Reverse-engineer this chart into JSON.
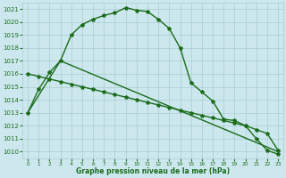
{
  "line1": {
    "x": [
      0,
      1,
      2,
      3,
      4,
      5,
      6,
      7,
      8,
      9,
      10,
      11,
      12,
      13,
      14,
      15,
      16,
      17,
      18,
      19,
      20,
      21,
      22,
      23
    ],
    "y": [
      1013.0,
      1014.8,
      1016.1,
      1017.0,
      1019.0,
      1019.8,
      1020.2,
      1020.5,
      1020.7,
      1021.1,
      1020.9,
      1020.8,
      1020.2,
      1019.5,
      1018.0,
      1015.3,
      1014.6,
      1013.9,
      1012.5,
      1012.4,
      1012.0,
      1011.0,
      1010.1,
      1009.8
    ]
  },
  "line2": {
    "x": [
      0,
      1,
      2,
      3,
      4,
      5,
      6,
      7,
      8,
      9,
      10,
      11,
      12,
      13,
      14,
      15,
      16,
      17,
      18,
      19,
      20,
      21,
      22,
      23
    ],
    "y": [
      1016.0,
      1015.8,
      1015.6,
      1015.4,
      1015.2,
      1015.0,
      1014.8,
      1014.6,
      1014.4,
      1014.2,
      1014.0,
      1013.8,
      1013.6,
      1013.4,
      1013.2,
      1013.0,
      1012.8,
      1012.6,
      1012.4,
      1012.2,
      1012.0,
      1011.7,
      1011.4,
      1010.1
    ]
  },
  "line3": {
    "x": [
      0,
      3,
      23
    ],
    "y": [
      1013.0,
      1017.0,
      1010.0
    ]
  },
  "line_color": "#1a6b1a",
  "bg_color": "#cce8ee",
  "grid_color": "#aacccc",
  "xlabel": "Graphe pression niveau de la mer (hPa)",
  "ylim": [
    1009.5,
    1021.5
  ],
  "yticks": [
    1010,
    1011,
    1012,
    1013,
    1014,
    1015,
    1016,
    1017,
    1018,
    1019,
    1020,
    1021
  ],
  "xticks": [
    0,
    1,
    2,
    3,
    4,
    5,
    6,
    7,
    8,
    9,
    10,
    11,
    12,
    13,
    14,
    15,
    16,
    17,
    18,
    19,
    20,
    21,
    22,
    23
  ]
}
